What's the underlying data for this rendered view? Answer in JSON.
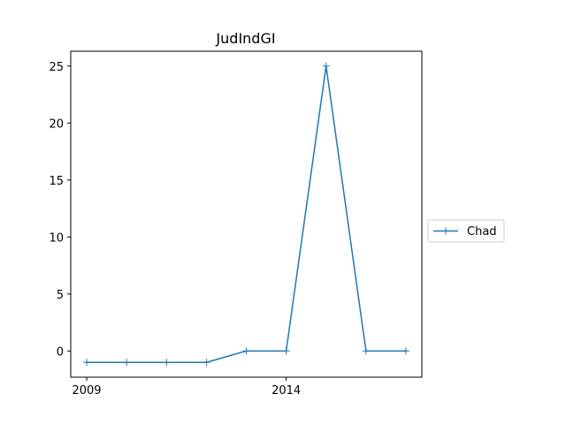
{
  "chart_data": {
    "type": "line",
    "title": "JudIndGI",
    "xlabel": "",
    "ylabel": "",
    "x": [
      2009,
      2010,
      2011,
      2012,
      2013,
      2014,
      2015,
      2016,
      2017
    ],
    "series": [
      {
        "name": "Chad",
        "color": "#1f77b4",
        "marker": "plus",
        "values": [
          -1,
          -1,
          -1,
          -1,
          0,
          0,
          25,
          0,
          0
        ]
      }
    ],
    "xticks": [
      "2009",
      "2014"
    ],
    "xtick_values": [
      2009,
      2014
    ],
    "yticks": [
      "0",
      "5",
      "10",
      "15",
      "20",
      "25"
    ],
    "ytick_values": [
      0,
      5,
      10,
      15,
      20,
      25
    ],
    "xlim": [
      2008.6,
      2017.4
    ],
    "ylim": [
      -2.3,
      26.3
    ],
    "grid": false,
    "legend_position": "right, outside plot"
  }
}
